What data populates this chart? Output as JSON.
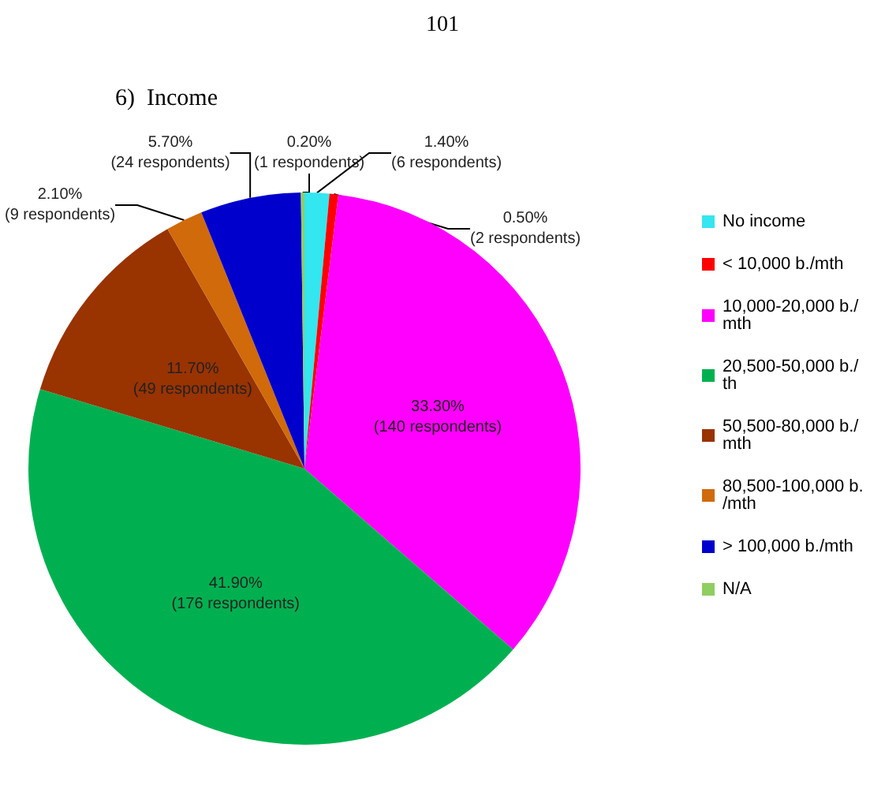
{
  "chart_data": {
    "type": "pie",
    "title": "6)  Income",
    "annotations": [
      "101"
    ],
    "categories": [
      "No income",
      "< 10,000 b./mth",
      "10,000-20,000 b./mth",
      "20,500-50,000 b./th",
      "50,500-80,000 b./mth",
      "80,500-100,000 b./mth",
      "> 100,000 b./mth",
      "N/A"
    ],
    "values": [
      1.4,
      0.5,
      33.3,
      41.9,
      11.7,
      2.1,
      5.7,
      0.2
    ],
    "value_labels": [
      "1.40%\n(6 respondents)",
      "0.50%\n(2 respondents)",
      "33.30%\n(140 respondents)",
      "41.90%\n(176 respondents)",
      "11.70%\n(49 respondents)",
      "2.10%\n(9 respondents)",
      "5.70%\n(24 respondents)",
      "0.20%\n(1 respondents)"
    ],
    "colors": [
      "#33e6f0",
      "#ff0000",
      "#ff00ff",
      "#00b050",
      "#993300",
      "#d06a0a",
      "#0000cc",
      "#8fce60"
    ],
    "legend": "right"
  }
}
